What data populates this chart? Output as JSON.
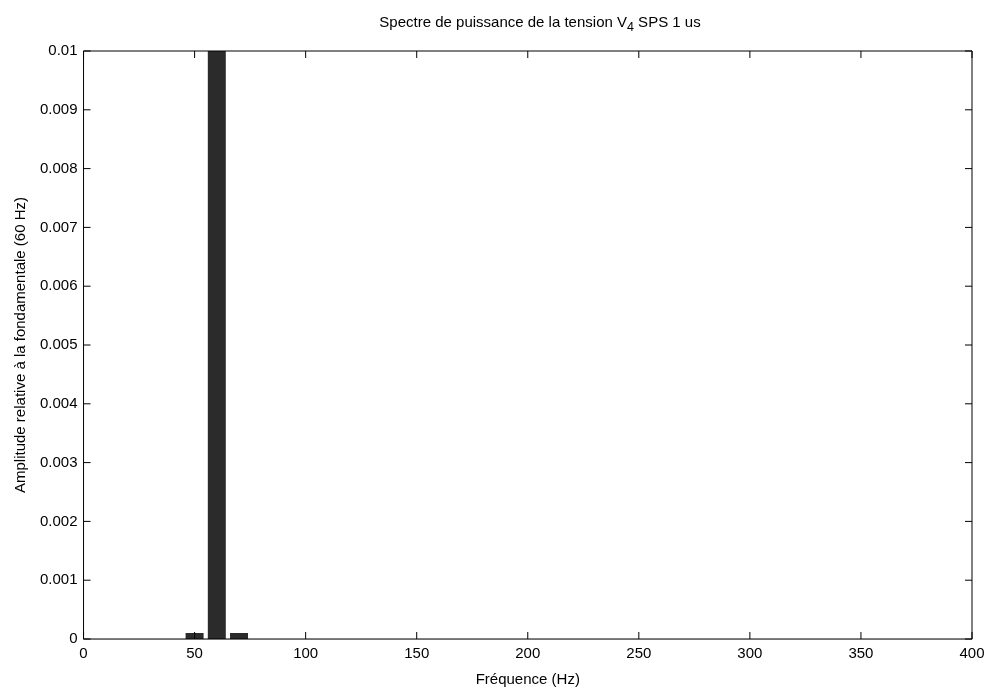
{
  "chart_data": {
    "type": "bar",
    "title": "Spectre de puissance de la tension V$_{4}$ SPS 1 us",
    "xlabel": "Fréquence (Hz)",
    "ylabel": "Amplitude relative à la fondamentale (60 Hz)",
    "x": [
      50,
      60,
      70
    ],
    "values": [
      0.0001,
      0.01,
      0.0001
    ],
    "color": "#2b2b2b",
    "xlim": [
      0,
      400
    ],
    "xticks": [
      0,
      50,
      100,
      150,
      200,
      250,
      300,
      350,
      400
    ],
    "ylim": [
      0,
      0.01
    ],
    "yticks": [
      0,
      0.001,
      0.002,
      0.003,
      0.004,
      0.005,
      0.006,
      0.007,
      0.008,
      0.009,
      0.01
    ],
    "grid": false,
    "legend": false
  }
}
